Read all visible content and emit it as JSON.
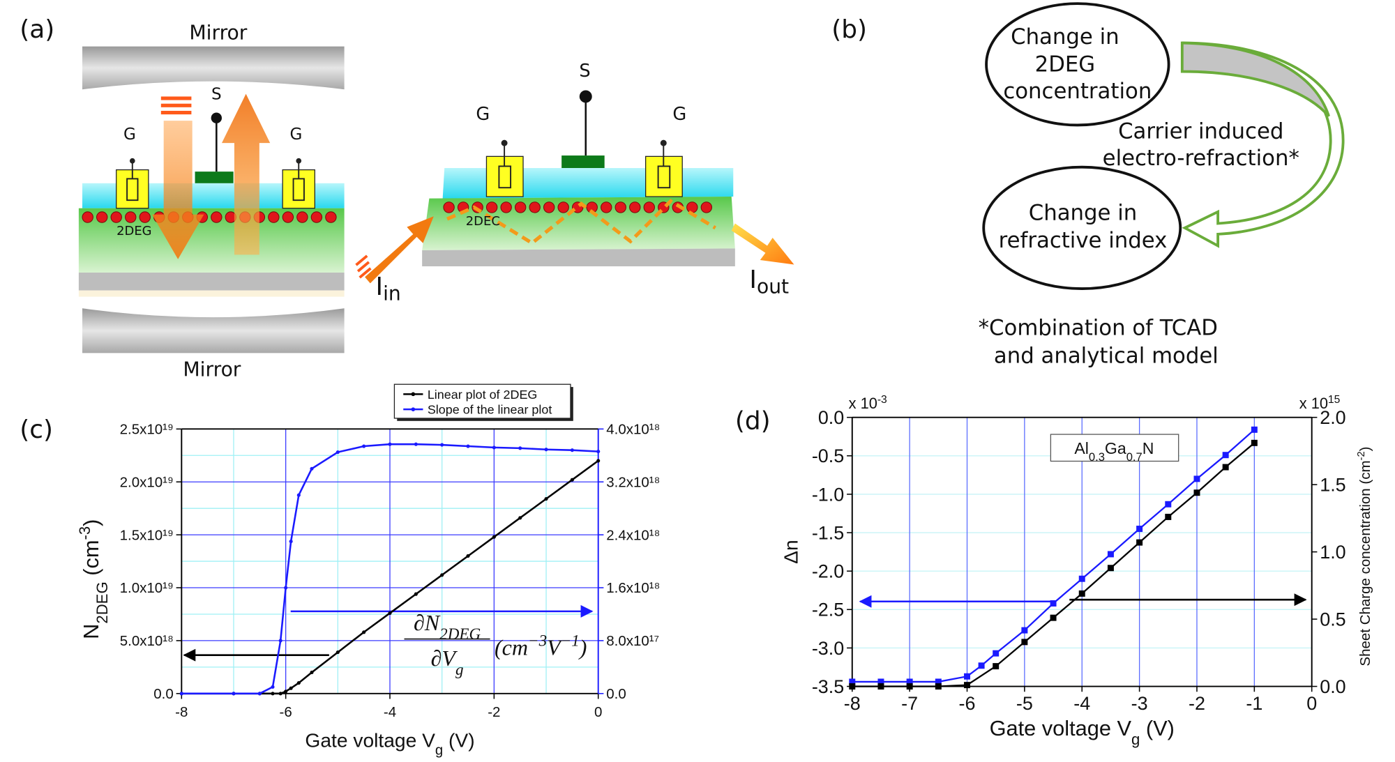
{
  "panel_a": {
    "label": "(a)",
    "mirror_top": "Mirror",
    "mirror_bottom": "Mirror",
    "left_device": {
      "gate_left": "G",
      "source": "S",
      "gate_right": "G",
      "channel": "2DEG"
    },
    "right_device": {
      "source": "S",
      "gate_left": "G",
      "gate_right": "G",
      "channel": "2DEC"
    },
    "input": {
      "main": "I",
      "sub": "in"
    },
    "output": {
      "main": "I",
      "sub": "out"
    }
  },
  "panel_b": {
    "label": "(b)",
    "top_node": [
      "Change in",
      "2DEG",
      "concentration"
    ],
    "bottom_node": [
      "Change in",
      "refractive index"
    ],
    "arrow_label": [
      "Carrier induced",
      "electro-refraction*"
    ],
    "footnote": [
      "*Combination of TCAD",
      "and analytical model"
    ]
  },
  "chart_data": [
    {
      "type": "line",
      "panel_label": "(c)",
      "xlabel": [
        {
          "text": "Gate voltage V"
        },
        {
          "text": "g",
          "sub": true
        },
        {
          "text": " (V)"
        }
      ],
      "ylabel": [
        {
          "text": "N"
        },
        {
          "text": "2DEG",
          "sub": true
        },
        {
          "text": " (cm"
        },
        {
          "text": "-3",
          "sup": true
        },
        {
          "text": ")"
        }
      ],
      "annotation": {
        "numerator": [
          {
            "text": "∂N"
          },
          {
            "text": "2DEG",
            "sub": true
          }
        ],
        "denominator": [
          {
            "text": "∂V"
          },
          {
            "text": "g",
            "sub": true
          }
        ],
        "unit": [
          {
            "text": "(cm"
          },
          {
            "text": "−3",
            "sup": true
          },
          {
            "text": "V"
          },
          {
            "text": "−1",
            "sup": true
          },
          {
            "text": ")"
          }
        ]
      },
      "x": [
        -8,
        -7,
        -6.5,
        -6.25,
        -6.1,
        -6,
        -5.9,
        -5.75,
        -5.5,
        -5,
        -4.5,
        -4,
        -3.5,
        -3,
        -2.5,
        -2,
        -1.5,
        -1,
        -0.5,
        0
      ],
      "series": [
        {
          "name": "Linear plot of 2DEG",
          "color": "#000000",
          "axis": "y",
          "values": [
            0,
            0,
            0,
            0,
            0,
            2e+17,
            5e+17,
            1e+18,
            2e+18,
            3.9e+18,
            5.8e+18,
            7.6e+18,
            9.4e+18,
            1.12e+19,
            1.3e+19,
            1.48e+19,
            1.66e+19,
            1.84e+19,
            2.02e+19,
            2.2e+19
          ]
        },
        {
          "name": "Slope of the linear plot",
          "color": "#1a1aff",
          "axis": "y2",
          "values": [
            0,
            0,
            0,
            1e+17,
            8e+17,
            1.6e+18,
            2.3e+18,
            3e+18,
            3.4e+18,
            3.65e+18,
            3.74e+18,
            3.77e+18,
            3.77e+18,
            3.76e+18,
            3.74e+18,
            3.72e+18,
            3.71e+18,
            3.69e+18,
            3.68e+18,
            3.66e+18
          ]
        }
      ],
      "marker": "circle",
      "xlim": [
        -8,
        0
      ],
      "xticks": [
        -8,
        -6,
        -4,
        -2,
        0
      ],
      "ylim": [
        0,
        2.5e+19
      ],
      "yticks": [
        {
          "value": 0,
          "label": "0.0"
        },
        {
          "value": 5e+18,
          "label": "5.0x10¹⁸"
        },
        {
          "value": 1e+19,
          "label": "1.0x10¹⁹"
        },
        {
          "value": 1.5e+19,
          "label": "1.5x10¹⁹"
        },
        {
          "value": 2e+19,
          "label": "2.0x10¹⁹"
        },
        {
          "value": 2.5e+19,
          "label": "2.5x10¹⁹"
        }
      ],
      "y2lim": [
        0,
        4e+18
      ],
      "y2ticks": [
        {
          "value": 0,
          "label": "0.0"
        },
        {
          "value": 8e+17,
          "label": "8.0x10¹⁷"
        },
        {
          "value": 1.6e+18,
          "label": "1.6x10¹⁸"
        },
        {
          "value": 2.4e+18,
          "label": "2.4x10¹⁸"
        },
        {
          "value": 3.2e+18,
          "label": "3.2x10¹⁸"
        },
        {
          "value": 4e+18,
          "label": "4.0x10¹⁸"
        }
      ],
      "ytick_color": "#000000",
      "y2tick_color": "#1a1aff",
      "grid": true,
      "grid_color": "#3a3aff",
      "minor_grid_color": "#9ff0f5",
      "legend": "top-right"
    },
    {
      "type": "line",
      "panel_label": "(d)",
      "xlabel": [
        {
          "text": "Gate voltage V"
        },
        {
          "text": "g",
          "sub": true
        },
        {
          "text": " (V)"
        }
      ],
      "ylabel": "Δn",
      "y2label": [
        {
          "text": "Sheet Charge concentration (cm"
        },
        {
          "text": "-2",
          "sup": true
        },
        {
          "text": ")"
        }
      ],
      "ymultiplier": [
        {
          "text": "x 10"
        },
        {
          "text": "-3",
          "sup": true
        }
      ],
      "y2multiplier": [
        {
          "text": "x 10"
        },
        {
          "text": "15",
          "sup": true
        }
      ],
      "annotation": [
        {
          "text": "Al"
        },
        {
          "text": "0.3",
          "sub": true
        },
        {
          "text": "Ga"
        },
        {
          "text": "0.7",
          "sub": true
        },
        {
          "text": "N"
        }
      ],
      "series": [
        {
          "color": "#1a1aff",
          "axis": "y",
          "x": [
            -8,
            -7.5,
            -7,
            -6.5,
            -6,
            -5.75,
            -5.5,
            -5,
            -4.5,
            -4,
            -3.5,
            -3,
            -2.5,
            -2,
            -1.5,
            -1
          ],
          "values": [
            -3.44,
            -3.44,
            -3.44,
            -3.44,
            -3.37,
            -3.23,
            -3.07,
            -2.77,
            -2.42,
            -2.1,
            -1.78,
            -1.45,
            -1.13,
            -0.8,
            -0.49,
            -0.16
          ]
        },
        {
          "color": "#000000",
          "axis": "y2",
          "x": [
            -8,
            -7.5,
            -7,
            -6.5,
            -6,
            -5.5,
            -5,
            -4.5,
            -4,
            -3.5,
            -3,
            -2.5,
            -2,
            -1.5,
            -1
          ],
          "values": [
            0,
            0,
            0,
            0,
            0.01,
            0.15,
            0.33,
            0.51,
            0.69,
            0.88,
            1.07,
            1.26,
            1.44,
            1.63,
            1.81
          ]
        }
      ],
      "marker": "square",
      "xlim": [
        -8,
        0
      ],
      "xticks": [
        -8,
        -7,
        -6,
        -5,
        -4,
        -3,
        -2,
        -1,
        0
      ],
      "ylim": [
        -3.5,
        0
      ],
      "yticks": [
        {
          "value": -3.5,
          "label": "-3.5"
        },
        {
          "value": -3,
          "label": "-3.0"
        },
        -2.5,
        {
          "value": -2,
          "label": "-2.0"
        },
        -1.5,
        {
          "value": -1,
          "label": "-1.0"
        },
        -0.5,
        {
          "value": 0,
          "label": "0.0"
        }
      ],
      "y2lim": [
        0,
        2
      ],
      "y2ticks": [
        {
          "value": 0,
          "label": "0.0"
        },
        0.5,
        {
          "value": 1,
          "label": "1.0"
        },
        1.5,
        {
          "value": 2,
          "label": "2.0"
        }
      ],
      "ytick_color": "#1a1aff",
      "y2tick_color": "#000000",
      "grid": true,
      "grid_color": "#5a6cff",
      "minor_grid_color": "#c8f4f7"
    }
  ]
}
